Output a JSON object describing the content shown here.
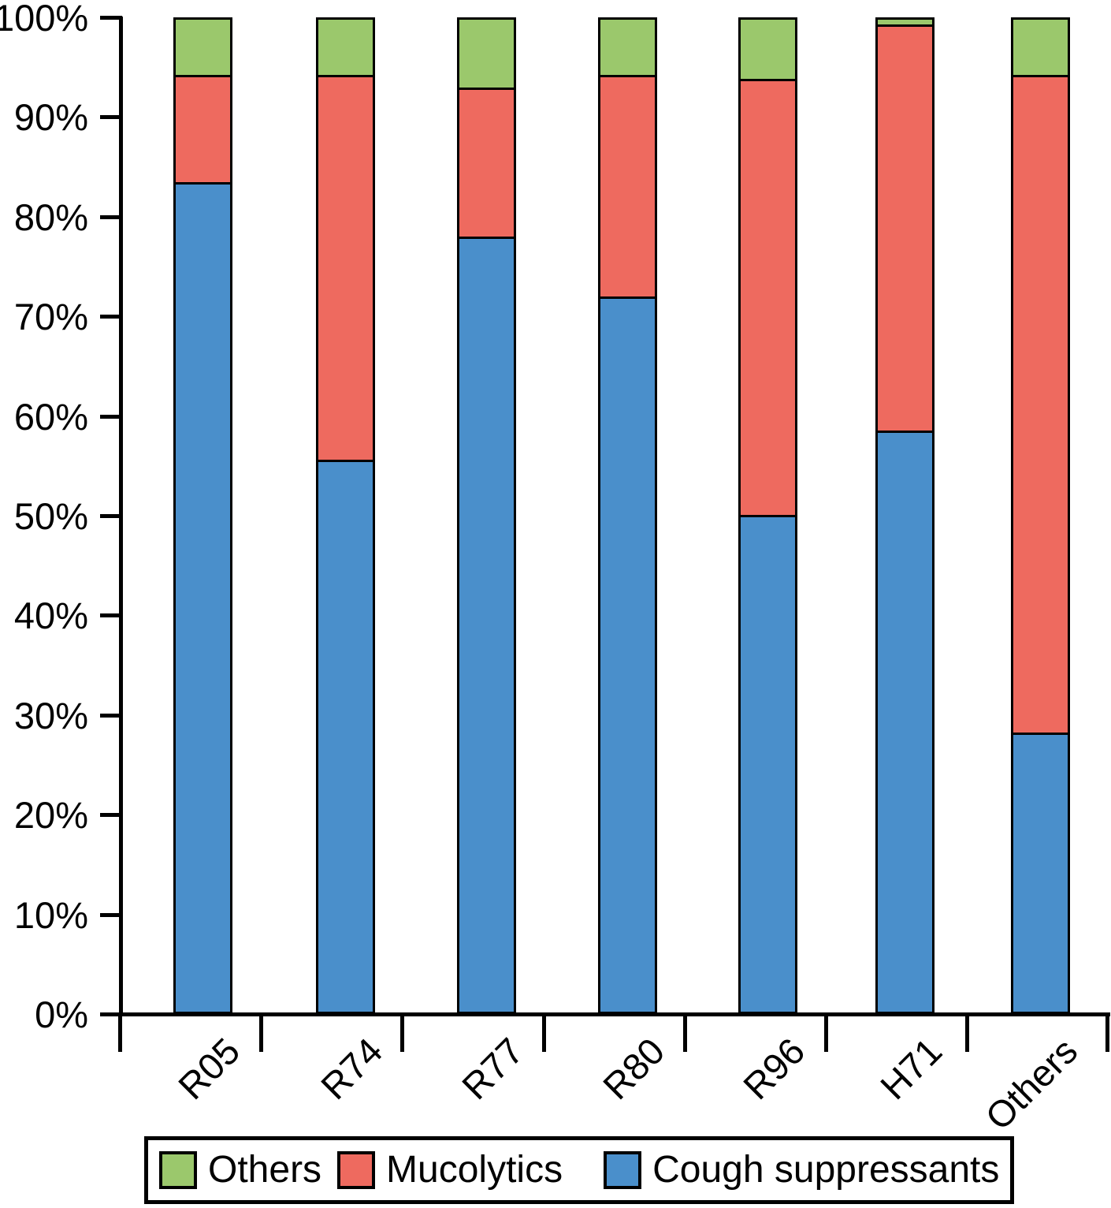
{
  "chart_data": {
    "type": "bar",
    "stacked": true,
    "units": "percent",
    "title": "",
    "xlabel": "",
    "ylabel": "",
    "categories": [
      "R05",
      "R74",
      "R77",
      "R80",
      "R96",
      "H71",
      "Others"
    ],
    "series": [
      {
        "name": "Cough suppressants",
        "color": "#4A8FCB",
        "values": [
          83.8,
          55.7,
          78.3,
          72.2,
          50.1,
          58.6,
          28.0
        ]
      },
      {
        "name": "Mucolytics",
        "color": "#EE6A5F",
        "values": [
          10.6,
          38.7,
          14.8,
          22.2,
          43.9,
          40.9,
          66.4
        ]
      },
      {
        "name": "Others",
        "color": "#9BC86C",
        "values": [
          5.6,
          5.6,
          6.9,
          5.6,
          6.0,
          0.5,
          5.6
        ]
      }
    ],
    "ylim": [
      0,
      100
    ],
    "y_tick_labels": [
      "0%",
      "10%",
      "20%",
      "30%",
      "40%",
      "50%",
      "60%",
      "70%",
      "80%",
      "90%",
      "100%"
    ],
    "grid": false,
    "legend_position": "bottom"
  },
  "legend": {
    "items": [
      {
        "label": "Others",
        "color": "#9BC86C"
      },
      {
        "label": "Mucolytics",
        "color": "#EE6A5F"
      },
      {
        "label": "Cough suppressants",
        "color": "#4A8FCB"
      }
    ]
  },
  "colors": {
    "axis": "#000000",
    "background": "#FFFFFF",
    "bar_outline": "#000000"
  }
}
